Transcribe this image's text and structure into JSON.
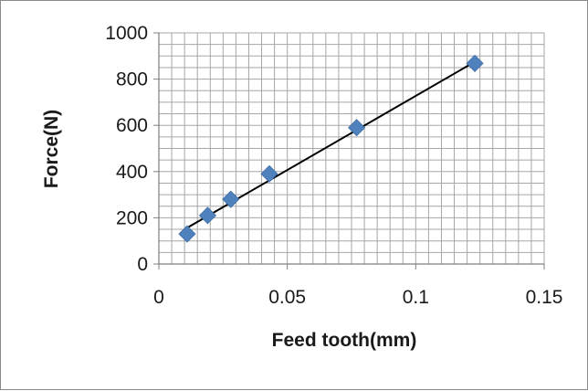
{
  "chart_data": {
    "type": "scatter",
    "title": "",
    "xlabel": "Feed tooth(mm)",
    "ylabel": "Force(N)",
    "xlim": [
      0,
      0.15
    ],
    "ylim": [
      0,
      1000
    ],
    "x_ticks": [
      "0",
      "0.05",
      "0.1",
      "0.15"
    ],
    "y_ticks": [
      "0",
      "200",
      "400",
      "600",
      "800",
      "1000"
    ],
    "grid": true,
    "legend": "none",
    "marker": "diamond",
    "marker_color": "#4f81bd",
    "trendline": {
      "type": "linear",
      "color": "#000000",
      "start": [
        0.01,
        150
      ],
      "end": [
        0.123,
        875
      ]
    },
    "series": [
      {
        "points": [
          [
            0.011,
            130
          ],
          [
            0.019,
            210
          ],
          [
            0.028,
            280
          ],
          [
            0.043,
            390
          ],
          [
            0.077,
            590
          ],
          [
            0.123,
            868
          ]
        ]
      }
    ]
  }
}
